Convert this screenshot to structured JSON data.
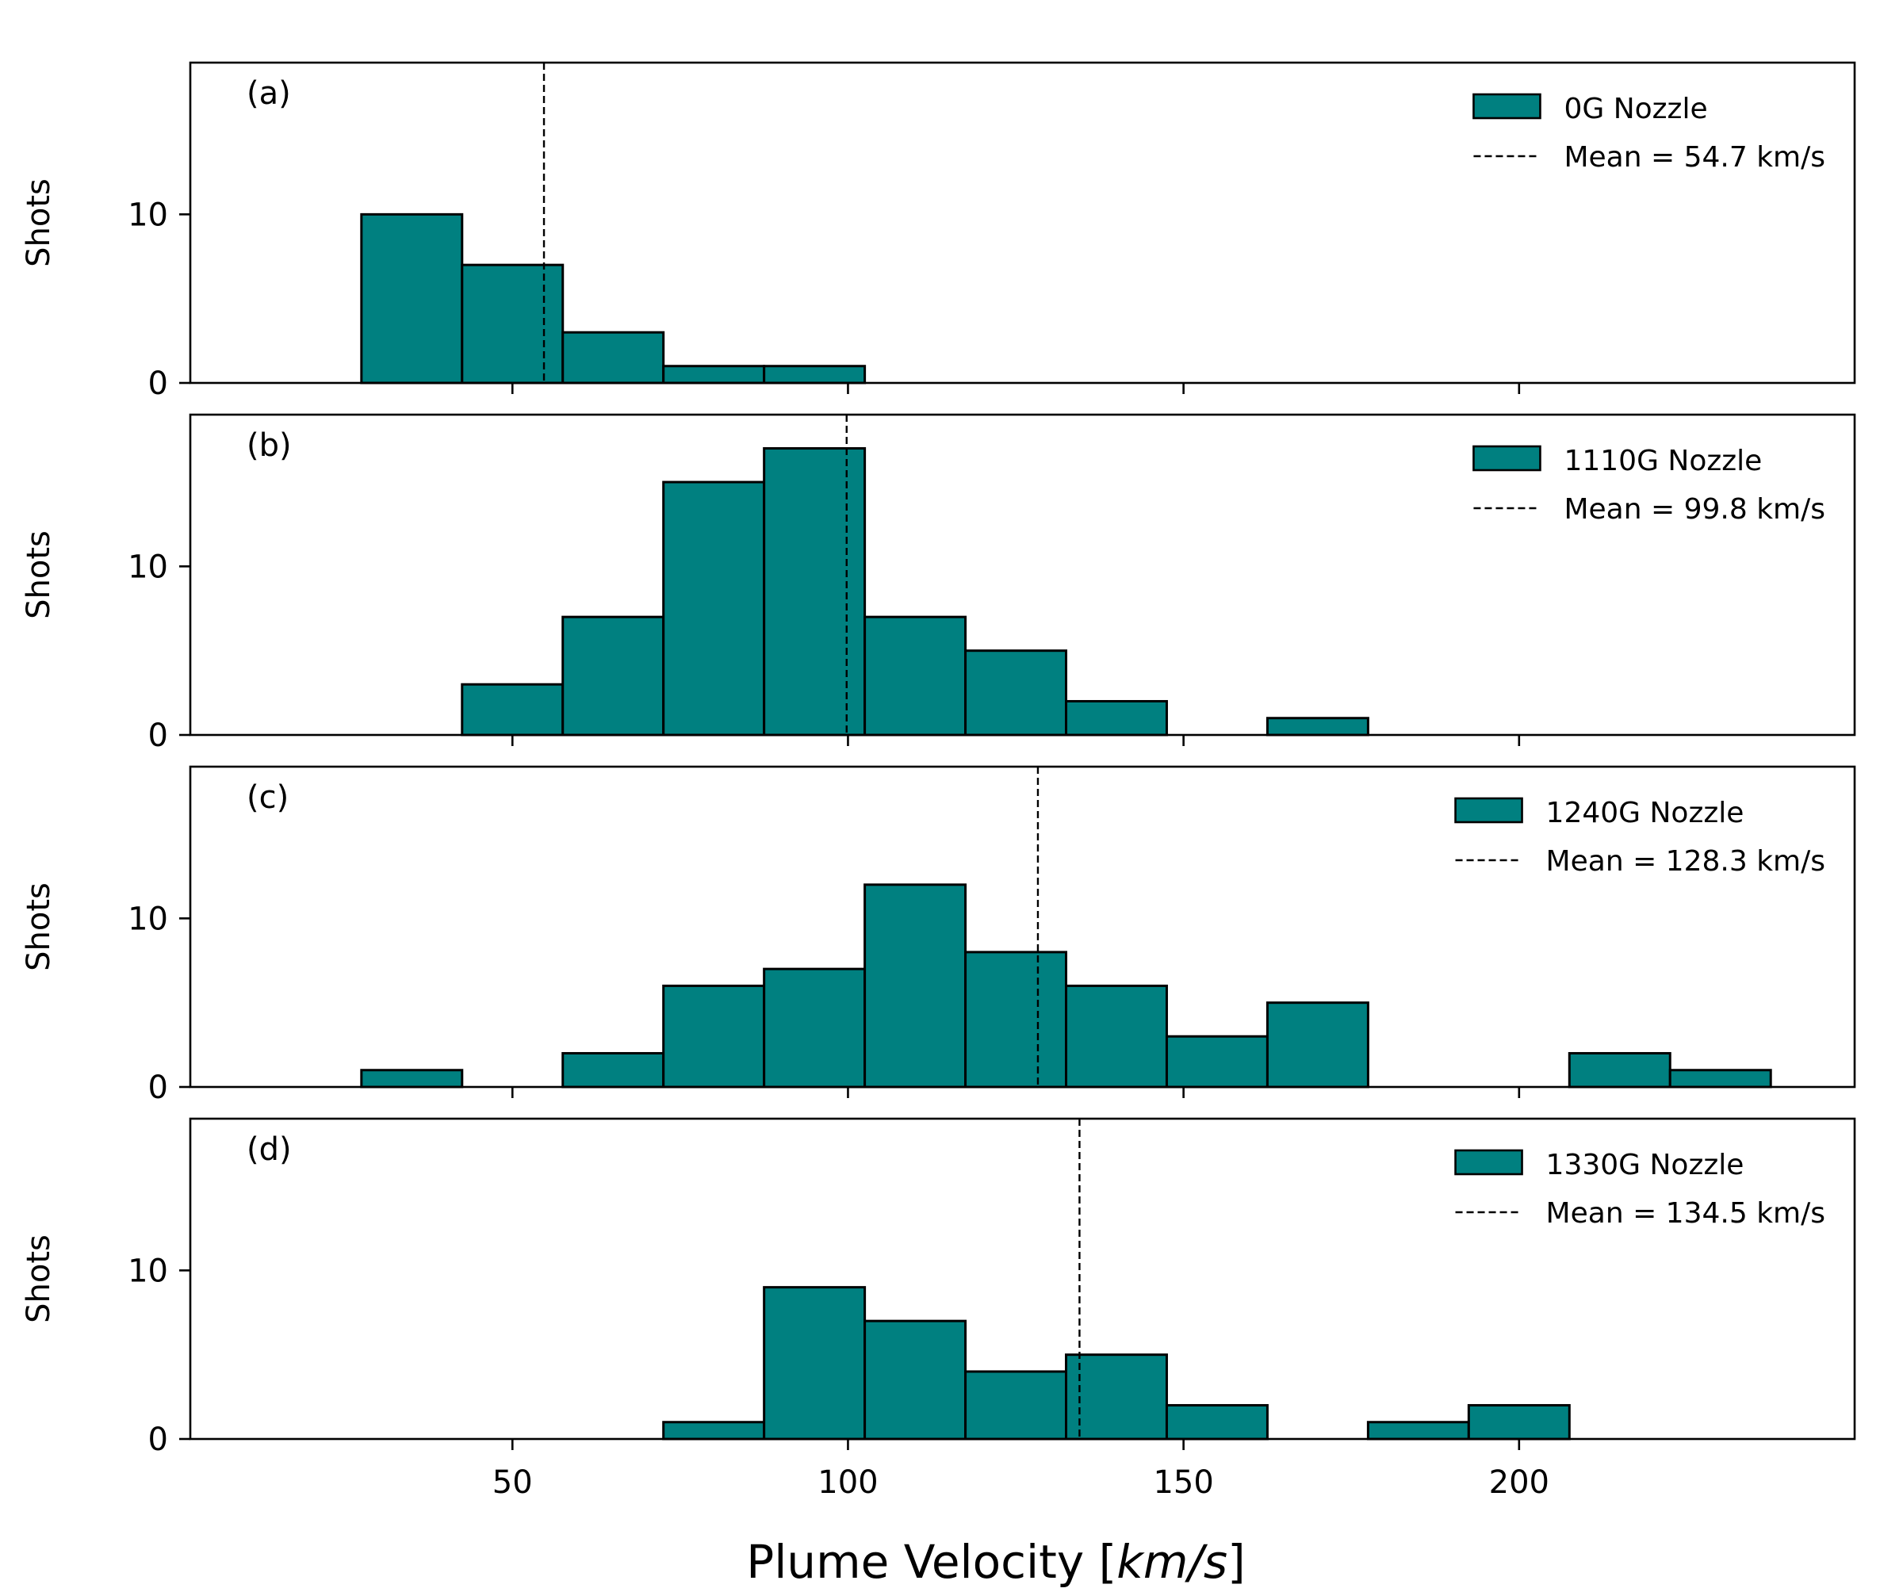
{
  "chart_data": {
    "type": "bar",
    "layout": "four stacked histogram panels sharing one x axis",
    "bin_edges": [
      27.5,
      42.5,
      57.5,
      72.5,
      87.5,
      102.5,
      117.5,
      132.5,
      147.5,
      162.5,
      177.5,
      192.5,
      207.5,
      222.5,
      237.5
    ],
    "xlim": [
      2,
      250
    ],
    "ylim": [
      0,
      19
    ],
    "x_ticks": [
      50,
      100,
      150,
      200
    ],
    "y_ticks": [
      0,
      10
    ],
    "xlabel": "Plume Velocity [",
    "xlabel_unit": "km/s",
    "xlabel_close": "]",
    "ylabel": "Shots",
    "bar_color": "#008080",
    "edge_color": "#000000",
    "legend_location": "top-right",
    "grid": false,
    "panels": [
      {
        "panel_label": "(a)",
        "series_name": "0G Nozzle",
        "counts": [
          10,
          7,
          3,
          1,
          1,
          0,
          0,
          0,
          0,
          0,
          0,
          0,
          0,
          0
        ],
        "mean": 54.7,
        "mean_label": "Mean = 54.7 km/s"
      },
      {
        "panel_label": "(b)",
        "series_name": "1110G Nozzle",
        "counts": [
          0,
          3,
          7,
          15,
          17,
          7,
          5,
          2,
          0,
          1,
          0,
          0,
          0,
          0
        ],
        "mean": 99.8,
        "mean_label": "Mean = 99.8 km/s"
      },
      {
        "panel_label": "(c)",
        "series_name": "1240G Nozzle",
        "counts": [
          1,
          0,
          2,
          6,
          7,
          12,
          8,
          6,
          3,
          5,
          0,
          0,
          2,
          1
        ],
        "mean": 128.3,
        "mean_label": "Mean = 128.3 km/s"
      },
      {
        "panel_label": "(d)",
        "series_name": "1330G Nozzle",
        "counts": [
          0,
          0,
          0,
          1,
          9,
          7,
          4,
          5,
          2,
          0,
          1,
          2,
          0,
          0
        ],
        "mean": 134.5,
        "mean_label": "Mean = 134.5 km/s"
      }
    ]
  }
}
